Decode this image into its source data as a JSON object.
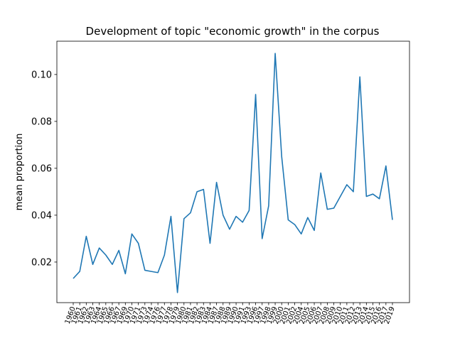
{
  "chart_data": {
    "type": "line",
    "title": "Development of topic \"economic growth\" in the corpus",
    "y_label": "mean proportion",
    "categories": [
      "1960",
      "1961",
      "1962",
      "1963",
      "1964",
      "1965",
      "1966",
      "1967",
      "1969",
      "1970",
      "1971",
      "1973",
      "1974",
      "1976",
      "1977",
      "1978",
      "1979",
      "1980",
      "1981",
      "1982",
      "1983",
      "1984",
      "1987",
      "1988",
      "1989",
      "1990",
      "1991",
      "1993",
      "1996",
      "1997",
      "1998",
      "1999",
      "2000",
      "2001",
      "2002",
      "2004",
      "2005",
      "2006",
      "2007",
      "2008",
      "2009",
      "2010",
      "2011",
      "2012",
      "2013",
      "2014",
      "2015",
      "2016",
      "2017",
      "2019"
    ],
    "values": [
      0.013,
      0.016,
      0.031,
      0.019,
      0.026,
      0.023,
      0.019,
      0.025,
      0.015,
      0.032,
      0.028,
      0.0165,
      0.016,
      0.0155,
      0.023,
      0.0395,
      0.007,
      0.0385,
      0.041,
      0.05,
      0.051,
      0.028,
      0.054,
      0.04,
      0.034,
      0.0395,
      0.037,
      0.042,
      0.0915,
      0.03,
      0.044,
      0.109,
      0.065,
      0.038,
      0.036,
      0.032,
      0.039,
      0.0335,
      0.058,
      0.0425,
      0.043,
      0.048,
      0.053,
      0.05,
      0.099,
      0.048,
      0.049,
      0.047,
      0.061,
      0.038
    ],
    "color": "#1f77b4",
    "ylim": [
      0.0027,
      0.1142
    ],
    "yticks": [
      0.02,
      0.04,
      0.06,
      0.08,
      {
        "value": 0.1,
        "label": "0.10"
      }
    ]
  }
}
